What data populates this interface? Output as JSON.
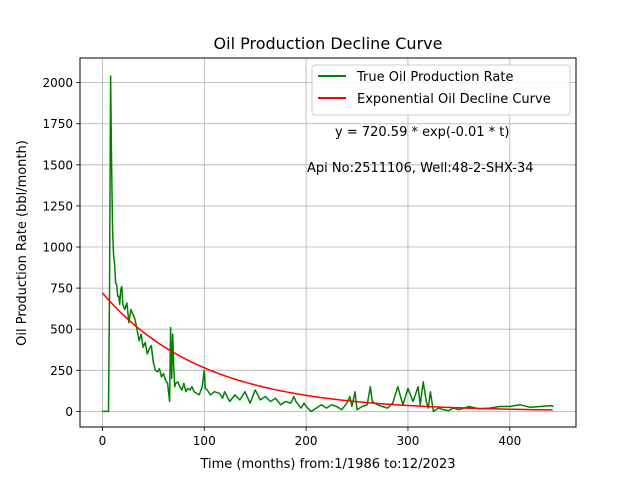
{
  "chart_data": {
    "type": "line",
    "title": "Oil Production Decline Curve",
    "xlabel": "Time (months) from:1/1986 to:12/2023",
    "ylabel": "Oil Production Rate (bbl/month)",
    "xlim": [
      -22,
      465
    ],
    "ylim": [
      -95,
      2150
    ],
    "xticks": [
      0,
      100,
      200,
      300,
      400
    ],
    "yticks": [
      0,
      250,
      500,
      750,
      1000,
      1250,
      1500,
      1750,
      2000
    ],
    "grid": true,
    "legend_position": "top-right",
    "annotations": [
      "y = 720.59 * exp(-0.01 * t)",
      "Api No:2511106, Well:48-2-SHX-34"
    ],
    "series": [
      {
        "name": "True Oil Production Rate",
        "color": "#008000",
        "x": [
          0,
          6,
          7,
          8,
          9,
          10,
          11,
          12,
          13,
          14,
          15,
          16,
          17,
          18,
          19,
          20,
          22,
          24,
          26,
          28,
          30,
          32,
          34,
          36,
          38,
          40,
          42,
          44,
          46,
          48,
          50,
          52,
          54,
          56,
          58,
          60,
          62,
          64,
          66,
          67,
          68,
          69,
          70,
          71,
          72,
          74,
          76,
          78,
          80,
          82,
          84,
          86,
          88,
          90,
          95,
          98,
          100,
          101,
          103,
          106,
          110,
          115,
          118,
          120,
          125,
          130,
          135,
          140,
          145,
          150,
          155,
          160,
          165,
          170,
          175,
          180,
          185,
          188,
          190,
          195,
          198,
          200,
          205,
          210,
          215,
          220,
          225,
          230,
          235,
          240,
          243,
          245,
          248,
          250,
          255,
          260,
          263,
          265,
          270,
          275,
          280,
          285,
          290,
          295,
          300,
          305,
          310,
          312,
          315,
          318,
          320,
          322,
          325,
          330,
          335,
          340,
          345,
          350,
          355,
          360,
          370,
          380,
          390,
          400,
          410,
          420,
          430,
          440,
          443
        ],
        "y": [
          0,
          0,
          700,
          2040,
          1500,
          1100,
          950,
          900,
          780,
          770,
          700,
          700,
          650,
          740,
          760,
          650,
          620,
          660,
          540,
          620,
          590,
          560,
          500,
          430,
          470,
          390,
          420,
          350,
          380,
          400,
          300,
          250,
          240,
          260,
          210,
          230,
          190,
          170,
          60,
          510,
          200,
          470,
          280,
          150,
          170,
          180,
          150,
          130,
          170,
          120,
          140,
          130,
          150,
          120,
          100,
          150,
          250,
          140,
          130,
          100,
          120,
          110,
          80,
          120,
          60,
          100,
          70,
          120,
          50,
          130,
          70,
          90,
          60,
          80,
          40,
          60,
          50,
          90,
          60,
          20,
          50,
          30,
          0,
          20,
          40,
          20,
          40,
          30,
          10,
          50,
          90,
          30,
          120,
          10,
          30,
          40,
          150,
          60,
          40,
          30,
          20,
          50,
          150,
          40,
          140,
          60,
          150,
          40,
          180,
          60,
          20,
          120,
          0,
          20,
          10,
          5,
          20,
          10,
          20,
          30,
          15,
          20,
          30,
          30,
          40,
          25,
          30,
          35,
          30
        ]
      },
      {
        "name": "Exponential Oil Decline Curve",
        "color": "#ff0000",
        "function": {
          "a": 720.59,
          "b": 0.01
        },
        "x_range": [
          0,
          443
        ]
      }
    ]
  }
}
